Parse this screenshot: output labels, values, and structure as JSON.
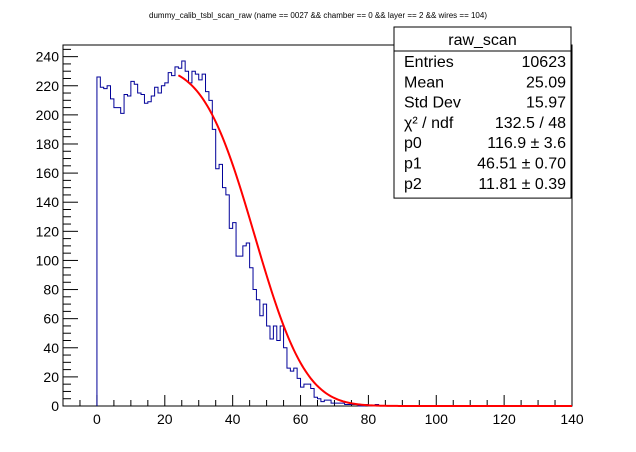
{
  "chart_data": {
    "type": "histogram",
    "title": "dummy_calib_tsbl_scan_raw  (name == 0027 && chamber == 0 && layer == 2 && wires == 104)",
    "xlabel": "",
    "ylabel": "",
    "xlim": [
      -10,
      140
    ],
    "ylim": [
      0,
      248
    ],
    "xticks": [
      0,
      20,
      40,
      60,
      80,
      100,
      120,
      140
    ],
    "yticks": [
      0,
      20,
      40,
      60,
      80,
      100,
      120,
      140,
      160,
      180,
      200,
      220,
      240
    ],
    "bin_width": 1,
    "bins_x_start": 0,
    "values": [
      226,
      219,
      218,
      220,
      211,
      205,
      205,
      201,
      214,
      213,
      223,
      221,
      215,
      214,
      208,
      209,
      213,
      219,
      215,
      220,
      222,
      229,
      227,
      233,
      232,
      237,
      230,
      222,
      230,
      228,
      224,
      228,
      216,
      210,
      190,
      163,
      166,
      150,
      145,
      122,
      126,
      103,
      103,
      110,
      112,
      95,
      80,
      73,
      62,
      70,
      55,
      46,
      55,
      45,
      55,
      40,
      26,
      24,
      26,
      19,
      13,
      15,
      15,
      12,
      6,
      5,
      3,
      4,
      4,
      2,
      2,
      2,
      2,
      1,
      1,
      1,
      1,
      0,
      0,
      1,
      0,
      0,
      1,
      0,
      0,
      0,
      0,
      0,
      0,
      0,
      0,
      0,
      0,
      0,
      0,
      0,
      0,
      0,
      0,
      0,
      0,
      0,
      0,
      0,
      0,
      0,
      0,
      0,
      0,
      0,
      0,
      0,
      0,
      0,
      0,
      0,
      0,
      0,
      0,
      0,
      0,
      0,
      0,
      0,
      0,
      0,
      0,
      0,
      0,
      0,
      0,
      0,
      0,
      0,
      0,
      0,
      0,
      0,
      0,
      0
    ],
    "fit": {
      "function": "gaus",
      "p0": 116.9,
      "p1": 46.51,
      "p2": 11.81,
      "x_range": [
        24,
        140
      ],
      "color": "#ff0000"
    },
    "histogram_color": "#000099",
    "stats": {
      "name": "raw_scan",
      "rows": [
        {
          "label": "Entries",
          "value": "10623"
        },
        {
          "label": "Mean",
          "value": "25.09"
        },
        {
          "label": "Std Dev",
          "value": "15.97"
        },
        {
          "label": "χ² / ndf",
          "value": "132.5 / 48"
        },
        {
          "label": "p0",
          "value": "116.9 ± 3.6"
        },
        {
          "label": "p1",
          "value": "46.51 ± 0.70"
        },
        {
          "label": "p2",
          "value": "11.81 ± 0.39"
        }
      ]
    }
  }
}
